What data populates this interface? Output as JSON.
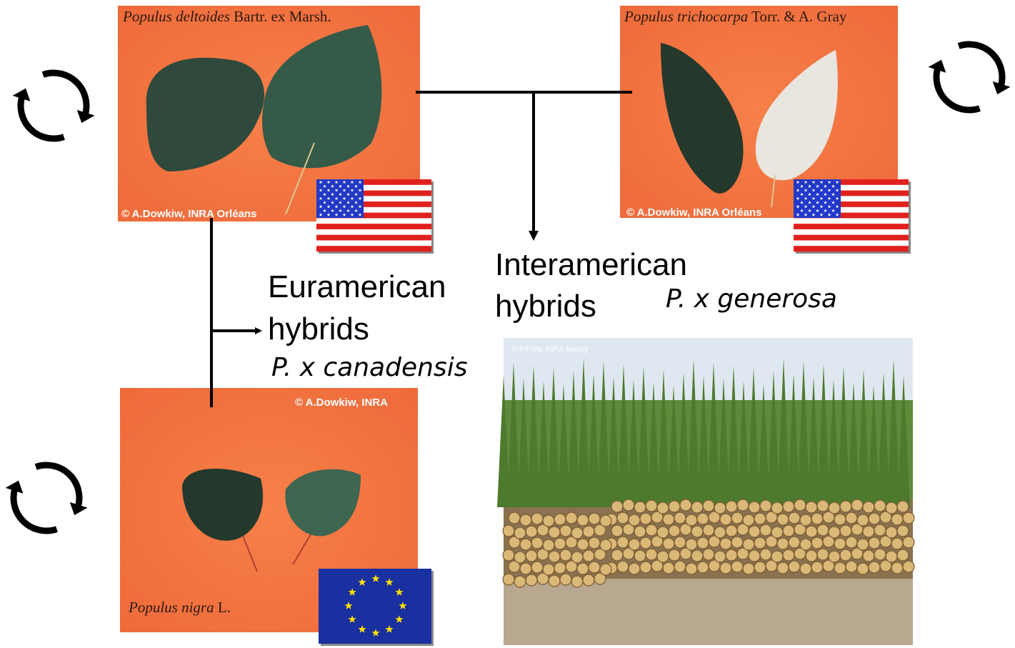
{
  "nodes": [
    {
      "species": "Populus deltoides",
      "author": "Bartr. ex Marsh.",
      "credit": "© A.Dowkiw, INRA Orléans"
    },
    {
      "species": "Populus trichocarpa",
      "author": "Torr. & A. Gray",
      "credit": "© A.Dowkiw, INRA Orléans"
    },
    {
      "species": "Populus nigra",
      "author": "L.",
      "credit": "© A.Dowkiw, INRA"
    }
  ],
  "photo": {
    "credit": "© P.Frey, INRA Nancy"
  },
  "hybrids": [
    {
      "group": "Euramerican",
      "kind": "hybrids",
      "name": "P. x canadensis"
    },
    {
      "group": "Interamerican",
      "kind": "hybrids",
      "name": "P. x generosa"
    }
  ]
}
